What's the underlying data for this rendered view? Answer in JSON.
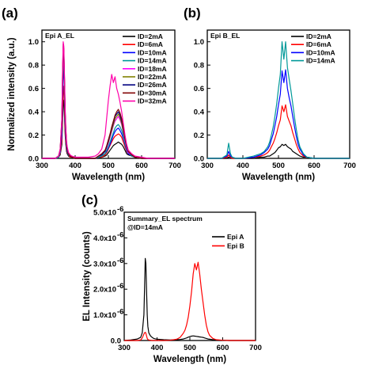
{
  "chart_data": [
    {
      "panel": "(a)",
      "type": "line",
      "title": "Epi A_EL",
      "xlabel": "Wavelength (nm)",
      "ylabel": "Normalized intensity (a.u.)",
      "xlim": [
        300,
        700
      ],
      "ylim": [
        0,
        1.1
      ],
      "xticks": [
        "300",
        "400",
        "500",
        "600",
        "700"
      ],
      "yticks": [
        "0.0",
        "0.2",
        "0.4",
        "0.6",
        "0.8",
        "1.0"
      ],
      "legend_position": "top-right",
      "x": [
        300,
        320,
        340,
        350,
        355,
        360,
        362,
        364,
        366,
        368,
        370,
        372,
        374,
        376,
        380,
        385,
        390,
        400,
        420,
        440,
        460,
        470,
        480,
        490,
        495,
        500,
        505,
        510,
        515,
        520,
        525,
        530,
        535,
        540,
        545,
        550,
        555,
        560,
        570,
        580,
        600,
        620,
        650,
        700
      ],
      "series": [
        {
          "name": "ID=2mA",
          "color": "#000000",
          "values": [
            0,
            0,
            0,
            0.01,
            0.03,
            0.12,
            0.3,
            0.5,
            0.48,
            0.35,
            0.2,
            0.12,
            0.06,
            0.04,
            0.02,
            0.01,
            0.01,
            0,
            0,
            0,
            0,
            0,
            0.01,
            0.02,
            0.03,
            0.05,
            0.07,
            0.09,
            0.11,
            0.12,
            0.13,
            0.14,
            0.13,
            0.12,
            0.1,
            0.07,
            0.04,
            0.03,
            0.02,
            0.01,
            0,
            0,
            0,
            0
          ]
        },
        {
          "name": "ID=6mA",
          "color": "#ff0000",
          "values": [
            0,
            0,
            0,
            0.01,
            0.04,
            0.15,
            0.38,
            0.62,
            0.58,
            0.42,
            0.25,
            0.15,
            0.08,
            0.05,
            0.03,
            0.01,
            0.01,
            0,
            0,
            0,
            0,
            0.01,
            0.01,
            0.03,
            0.05,
            0.08,
            0.11,
            0.14,
            0.17,
            0.19,
            0.2,
            0.21,
            0.2,
            0.18,
            0.14,
            0.1,
            0.06,
            0.04,
            0.02,
            0.01,
            0,
            0,
            0,
            0
          ]
        },
        {
          "name": "ID=10mA",
          "color": "#0000ff",
          "values": [
            0,
            0,
            0,
            0.01,
            0.05,
            0.2,
            0.5,
            0.78,
            0.72,
            0.5,
            0.3,
            0.18,
            0.1,
            0.06,
            0.03,
            0.02,
            0.01,
            0,
            0,
            0,
            0,
            0.01,
            0.02,
            0.04,
            0.06,
            0.09,
            0.12,
            0.16,
            0.2,
            0.23,
            0.25,
            0.26,
            0.24,
            0.21,
            0.17,
            0.12,
            0.07,
            0.04,
            0.02,
            0.01,
            0,
            0,
            0,
            0
          ]
        },
        {
          "name": "ID=14mA",
          "color": "#009999",
          "values": [
            0,
            0,
            0,
            0.01,
            0.05,
            0.25,
            0.55,
            0.85,
            0.8,
            0.56,
            0.33,
            0.2,
            0.11,
            0.07,
            0.03,
            0.02,
            0.01,
            0,
            0,
            0,
            0,
            0.01,
            0.02,
            0.04,
            0.07,
            0.1,
            0.14,
            0.18,
            0.22,
            0.26,
            0.28,
            0.29,
            0.27,
            0.24,
            0.19,
            0.13,
            0.08,
            0.05,
            0.02,
            0.01,
            0,
            0,
            0,
            0
          ]
        },
        {
          "name": "ID=18mA",
          "color": "#ff00ff",
          "values": [
            0,
            0,
            0,
            0.02,
            0.06,
            0.28,
            0.6,
            0.9,
            0.86,
            0.6,
            0.35,
            0.22,
            0.12,
            0.08,
            0.04,
            0.02,
            0.01,
            0,
            0,
            0,
            0,
            0.02,
            0.03,
            0.06,
            0.09,
            0.13,
            0.18,
            0.23,
            0.28,
            0.32,
            0.34,
            0.36,
            0.33,
            0.29,
            0.22,
            0.15,
            0.09,
            0.05,
            0.03,
            0.01,
            0,
            0,
            0,
            0
          ]
        },
        {
          "name": "ID=22mA",
          "color": "#808000",
          "values": [
            0,
            0,
            0,
            0.02,
            0.07,
            0.3,
            0.65,
            0.93,
            0.9,
            0.62,
            0.37,
            0.23,
            0.13,
            0.08,
            0.04,
            0.02,
            0.01,
            0,
            0,
            0,
            0,
            0.02,
            0.03,
            0.06,
            0.1,
            0.14,
            0.19,
            0.24,
            0.29,
            0.34,
            0.36,
            0.38,
            0.35,
            0.3,
            0.23,
            0.16,
            0.1,
            0.06,
            0.03,
            0.01,
            0,
            0,
            0,
            0
          ]
        },
        {
          "name": "ID=26mA",
          "color": "#000080",
          "values": [
            0,
            0,
            0,
            0.02,
            0.07,
            0.32,
            0.68,
            0.96,
            0.92,
            0.64,
            0.38,
            0.24,
            0.13,
            0.08,
            0.04,
            0.02,
            0.01,
            0,
            0,
            0,
            0,
            0.02,
            0.03,
            0.06,
            0.1,
            0.15,
            0.2,
            0.26,
            0.31,
            0.36,
            0.38,
            0.4,
            0.37,
            0.32,
            0.25,
            0.17,
            0.1,
            0.06,
            0.03,
            0.01,
            0,
            0,
            0,
            0
          ]
        },
        {
          "name": "ID=30mA",
          "color": "#800000",
          "values": [
            0,
            0,
            0,
            0.02,
            0.08,
            0.34,
            0.7,
            0.98,
            0.94,
            0.66,
            0.4,
            0.25,
            0.14,
            0.09,
            0.04,
            0.02,
            0.01,
            0,
            0,
            0,
            0,
            0.02,
            0.04,
            0.07,
            0.11,
            0.16,
            0.21,
            0.27,
            0.32,
            0.37,
            0.4,
            0.42,
            0.39,
            0.34,
            0.26,
            0.18,
            0.11,
            0.06,
            0.03,
            0.01,
            0,
            0,
            0,
            0
          ]
        },
        {
          "name": "ID=32mA",
          "color": "#ff00aa",
          "values": [
            0,
            0,
            0,
            0.02,
            0.08,
            0.35,
            0.72,
            1.0,
            0.96,
            0.68,
            0.42,
            0.26,
            0.15,
            0.1,
            0.05,
            0.03,
            0.02,
            0.01,
            0.01,
            0.01,
            0.02,
            0.04,
            0.08,
            0.2,
            0.35,
            0.5,
            0.62,
            0.72,
            0.65,
            0.7,
            0.6,
            0.55,
            0.48,
            0.4,
            0.3,
            0.2,
            0.12,
            0.07,
            0.04,
            0.02,
            0.01,
            0,
            0,
            0
          ]
        }
      ]
    },
    {
      "panel": "(b)",
      "type": "line",
      "title": "Epi B_EL",
      "xlabel": "Wavelength (nm)",
      "ylabel": "",
      "xlim": [
        300,
        700
      ],
      "ylim": [
        0,
        1.1
      ],
      "xticks": [
        "300",
        "400",
        "500",
        "600",
        "700"
      ],
      "yticks": [
        "0.0",
        "0.2",
        "0.4",
        "0.6",
        "0.8",
        "1.0"
      ],
      "legend_position": "top-right",
      "x": [
        300,
        340,
        355,
        360,
        365,
        370,
        380,
        400,
        430,
        450,
        460,
        470,
        475,
        480,
        485,
        490,
        495,
        500,
        505,
        510,
        515,
        520,
        525,
        530,
        535,
        540,
        545,
        550,
        555,
        560,
        570,
        580,
        600,
        620,
        650,
        700
      ],
      "series": [
        {
          "name": "ID=2mA",
          "color": "#000000",
          "values": [
            0,
            0,
            0,
            0.01,
            0.01,
            0,
            0,
            0,
            0,
            0.01,
            0.01,
            0.02,
            0.02,
            0.03,
            0.04,
            0.05,
            0.07,
            0.09,
            0.1,
            0.12,
            0.11,
            0.12,
            0.1,
            0.09,
            0.08,
            0.06,
            0.05,
            0.04,
            0.03,
            0.02,
            0.01,
            0.01,
            0,
            0,
            0,
            0
          ]
        },
        {
          "name": "ID=6mA",
          "color": "#ff0000",
          "values": [
            0,
            0,
            0.01,
            0.03,
            0.01,
            0,
            0,
            0,
            0.01,
            0.02,
            0.03,
            0.05,
            0.07,
            0.1,
            0.13,
            0.17,
            0.22,
            0.28,
            0.33,
            0.45,
            0.4,
            0.46,
            0.36,
            0.32,
            0.28,
            0.22,
            0.17,
            0.12,
            0.08,
            0.05,
            0.02,
            0.01,
            0,
            0,
            0,
            0
          ]
        },
        {
          "name": "ID=10mA",
          "color": "#0000ff",
          "values": [
            0,
            0,
            0.02,
            0.06,
            0.02,
            0.01,
            0,
            0,
            0.01,
            0.03,
            0.05,
            0.08,
            0.11,
            0.16,
            0.21,
            0.28,
            0.36,
            0.46,
            0.55,
            0.75,
            0.65,
            0.76,
            0.6,
            0.52,
            0.45,
            0.36,
            0.27,
            0.19,
            0.12,
            0.08,
            0.03,
            0.01,
            0,
            0,
            0,
            0
          ]
        },
        {
          "name": "ID=14mA",
          "color": "#009999",
          "values": [
            0,
            0,
            0.03,
            0.13,
            0.04,
            0.01,
            0,
            0,
            0.02,
            0.04,
            0.06,
            0.1,
            0.14,
            0.2,
            0.27,
            0.36,
            0.47,
            0.6,
            0.72,
            1.0,
            0.85,
            1.0,
            0.78,
            0.68,
            0.58,
            0.47,
            0.35,
            0.25,
            0.16,
            0.1,
            0.04,
            0.01,
            0,
            0,
            0,
            0
          ]
        }
      ]
    },
    {
      "panel": "(c)",
      "type": "line",
      "title": "Summary_EL spectrum",
      "subtitle": "@ID=14mA",
      "xlabel": "Wavelength (nm)",
      "ylabel": "EL Intensity (counts)",
      "xlim": [
        300,
        700
      ],
      "ylim": [
        0,
        5e-06
      ],
      "y_multiplier_label": "-6",
      "xticks": [
        "300",
        "400",
        "500",
        "600",
        "700"
      ],
      "yticks": [
        "0.0",
        "1.0x10",
        "2.0x10",
        "3.0x10",
        "4.0x10",
        "5.0x10"
      ],
      "legend_position": "top-right",
      "x": [
        300,
        320,
        340,
        350,
        355,
        360,
        362,
        364,
        366,
        368,
        370,
        372,
        375,
        380,
        385,
        390,
        400,
        420,
        440,
        460,
        470,
        480,
        485,
        490,
        495,
        500,
        505,
        510,
        515,
        520,
        525,
        530,
        535,
        540,
        545,
        550,
        555,
        560,
        570,
        580,
        600,
        620,
        650,
        700
      ],
      "series": [
        {
          "name": "Epi A",
          "color": "#000000",
          "values": [
            0,
            2e-08,
            6e-08,
            1.2e-07,
            3e-07,
            1e-06,
            2e-06,
            3.2e-06,
            3e-06,
            2e-06,
            1e-06,
            5.5e-07,
            3e-07,
            1.8e-07,
            1.2e-07,
            8e-08,
            5e-08,
            3e-08,
            2e-08,
            3e-08,
            4e-08,
            6e-08,
            8e-08,
            1e-07,
            1.3e-07,
            1.5e-07,
            1.7e-07,
            1.8e-07,
            1.7e-07,
            1.6e-07,
            1.5e-07,
            1.4e-07,
            1.3e-07,
            1.2e-07,
            1e-07,
            8e-08,
            6e-08,
            5e-08,
            3e-08,
            2e-08,
            1e-08,
            0,
            0,
            0
          ]
        },
        {
          "name": "Epi B",
          "color": "#ff0000",
          "values": [
            0,
            0,
            0,
            2e-08,
            1e-07,
            2.5e-07,
            3e-07,
            3.2e-07,
            2.8e-07,
            1.8e-07,
            8e-08,
            4e-08,
            2e-08,
            1e-08,
            0,
            0,
            0,
            0,
            1e-08,
            5e-08,
            1.2e-07,
            2.8e-07,
            4e-07,
            6e-07,
            9e-07,
            1.35e-06,
            1.9e-06,
            2.6e-06,
            3e-06,
            2.75e-06,
            3.05e-06,
            2.6e-06,
            2e-06,
            1.5e-06,
            1e-06,
            6e-07,
            3.5e-07,
            2e-07,
            8e-08,
            3e-08,
            1e-08,
            0,
            0,
            0
          ]
        }
      ]
    }
  ]
}
